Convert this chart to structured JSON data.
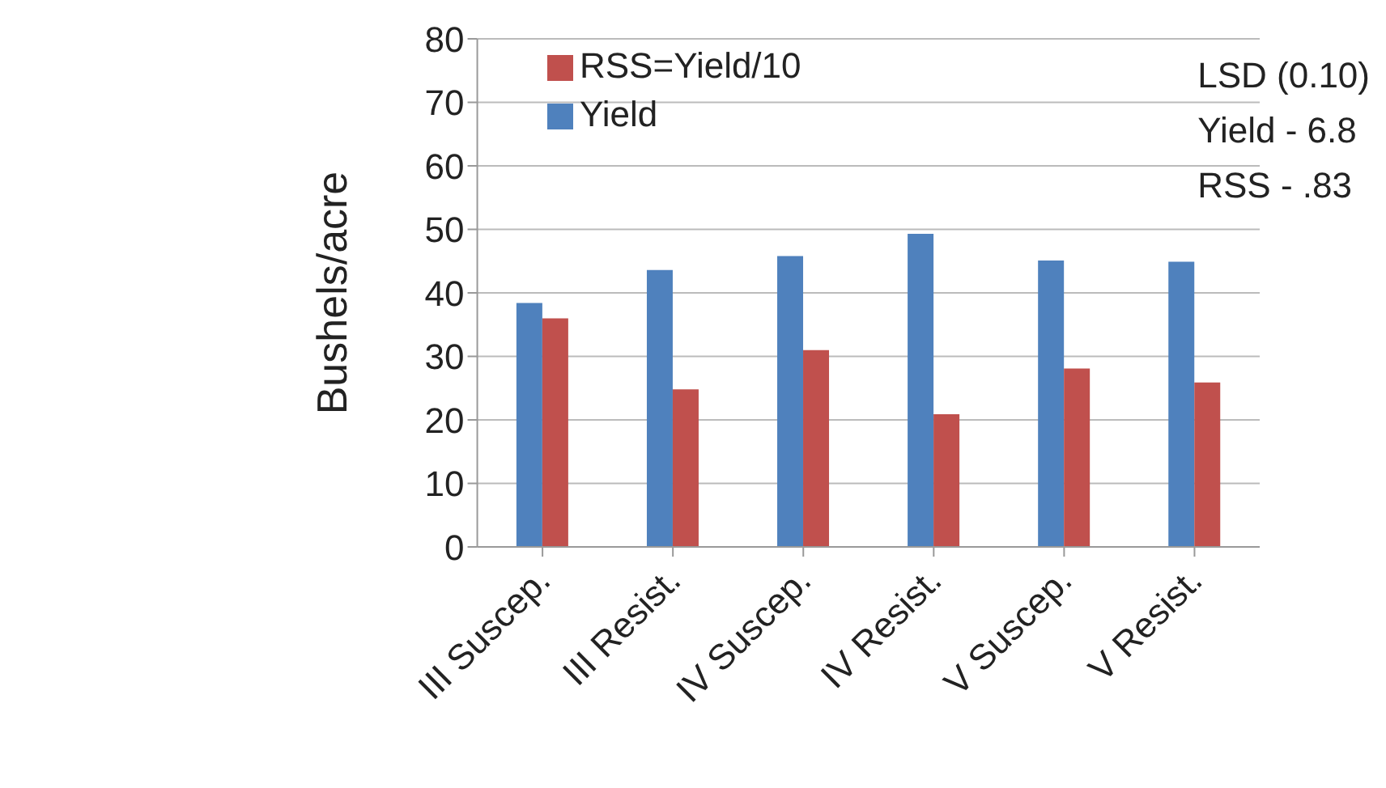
{
  "chart_data": {
    "type": "bar",
    "ylabel": "Bushels/acre",
    "categories": [
      "III Suscep.",
      "III Resist.",
      "IV Suscep.",
      "IV Resist.",
      "V Suscep.",
      "V Resist."
    ],
    "series": [
      {
        "name": "Yield",
        "color": "#4f81bd",
        "values": [
          38.4,
          43.6,
          45.8,
          49.3,
          45.1,
          44.9
        ]
      },
      {
        "name": "RSS=Yield/10",
        "color": "#c0504d",
        "values": [
          36.0,
          24.8,
          31.0,
          20.9,
          28.1,
          25.9
        ]
      }
    ],
    "ylim": [
      0,
      80
    ],
    "yticks": [
      0,
      10,
      20,
      30,
      40,
      50,
      60,
      70,
      80
    ],
    "grid": "y",
    "legend": "top",
    "annotations": [
      "LSD (0.10)",
      "Yield - 6.8",
      "RSS - .83"
    ]
  }
}
